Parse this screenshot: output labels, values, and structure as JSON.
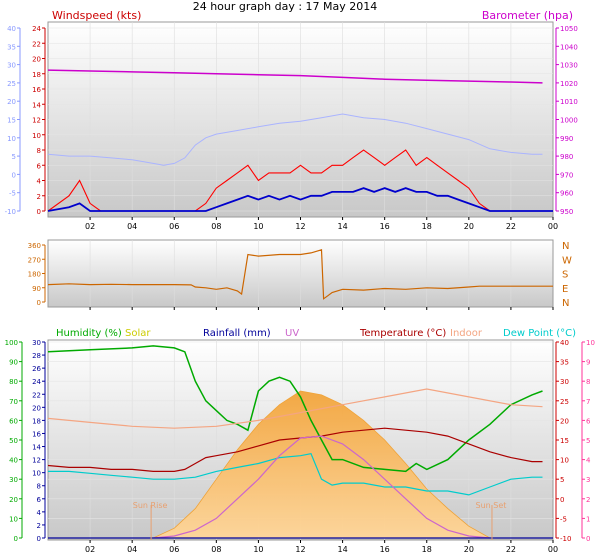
{
  "page_title": "24 hour graph day : 17 May 2014",
  "x_tick_labels": [
    "02",
    "04",
    "06",
    "08",
    "10",
    "12",
    "14",
    "16",
    "18",
    "20",
    "22",
    "00"
  ],
  "colors": {
    "wind": "#dd0000",
    "gust": "#ff0000",
    "avg_wind": "#0000cc",
    "barometer": "#cc00cc",
    "wind_direction": "#cc6600",
    "humidity": "#00aa00",
    "solar": "#ffb347",
    "rainfall": "#000099",
    "uv": "#cc66cc",
    "temperature": "#aa0000",
    "indoor": "#f4a582",
    "dew_point": "#00cccc",
    "sun_marker": "#e8a070",
    "panel_bg_top": "#ffffff",
    "panel_bg_bottom": "#c8c8c8"
  },
  "chart_data": [
    {
      "type": "line",
      "title": "24 hour graph day : 17 May 2014",
      "x_unit": "hour",
      "xlim": [
        0,
        24
      ],
      "left_axis": {
        "label": "Windspeed (kts)",
        "ticks": [
          0,
          2,
          4,
          6,
          8,
          10,
          12,
          14,
          16,
          18,
          20,
          22,
          24
        ],
        "ylim": [
          0,
          24
        ]
      },
      "left_outer_axis": {
        "ticks": [
          -10,
          -5,
          0,
          5,
          10,
          15,
          20,
          25,
          30,
          35,
          40
        ],
        "ylim": [
          -10,
          40
        ]
      },
      "right_axis": {
        "label": "Barometer (hpa)",
        "ticks": [
          950,
          960,
          970,
          980,
          990,
          1000,
          1010,
          1020,
          1030,
          1040,
          1050
        ],
        "ylim": [
          950,
          1050
        ]
      },
      "series": [
        {
          "name": "Barometer (hpa)",
          "axis": "right",
          "x": [
            0,
            2,
            4,
            6,
            8,
            10,
            12,
            14,
            16,
            18,
            20,
            22,
            23.5
          ],
          "y": [
            1027,
            1026.5,
            1026,
            1025.5,
            1025,
            1024.5,
            1024,
            1023,
            1022,
            1021.5,
            1021,
            1020.5,
            1020
          ]
        },
        {
          "axis": "left_outer",
          "x": [
            0,
            1,
            2,
            3,
            4,
            5,
            5.5,
            6,
            6.5,
            7,
            7.5,
            8,
            9,
            10,
            11,
            12,
            13,
            14,
            15,
            16,
            17,
            18,
            19,
            20,
            21,
            22,
            23,
            23.5
          ],
          "y": [
            5.5,
            5,
            5,
            4.5,
            4,
            3,
            2.5,
            3,
            4.5,
            8,
            10,
            11,
            12,
            13,
            14,
            14.5,
            15.5,
            16.5,
            15.5,
            15,
            14,
            12.5,
            11,
            9.5,
            7,
            6,
            5.5,
            5.5
          ]
        },
        {
          "name": "Wind (kts)",
          "axis": "left",
          "x": [
            0,
            1,
            1.5,
            2,
            2.5,
            3,
            4,
            5,
            6,
            6.5,
            7,
            7.5,
            8,
            8.5,
            9,
            9.5,
            10,
            10.5,
            11,
            11.5,
            12,
            12.5,
            13,
            13.5,
            14,
            14.5,
            15,
            15.5,
            16,
            16.5,
            17,
            17.5,
            18,
            18.5,
            19,
            19.5,
            20,
            20.5,
            21,
            21.5,
            22,
            23,
            24
          ],
          "y": [
            0,
            2,
            4,
            1,
            0,
            0,
            0,
            0,
            0,
            0,
            0,
            1,
            3,
            4,
            5,
            6,
            4,
            5,
            5,
            5,
            6,
            5,
            5,
            6,
            6,
            7,
            8,
            7,
            6,
            7,
            8,
            6,
            7,
            6,
            5,
            4,
            3,
            1,
            0,
            0,
            0,
            0,
            0
          ]
        },
        {
          "name": "Avg wind (kts)",
          "axis": "left",
          "x": [
            0,
            1,
            1.5,
            2,
            2.5,
            3,
            6,
            7,
            7.5,
            8,
            8.5,
            9,
            9.5,
            10,
            10.5,
            11,
            11.5,
            12,
            12.5,
            13,
            13.5,
            14,
            14.5,
            15,
            15.5,
            16,
            16.5,
            17,
            17.5,
            18,
            18.5,
            19,
            19.5,
            20,
            20.5,
            21,
            24
          ],
          "y": [
            0,
            0.5,
            1,
            0,
            0,
            0,
            0,
            0,
            0,
            0.5,
            1,
            1.5,
            2,
            1.5,
            2,
            1.5,
            2,
            1.5,
            2,
            2,
            2.5,
            2.5,
            2.5,
            3,
            2.5,
            3,
            2.5,
            3,
            2.5,
            2.5,
            2,
            2,
            1.5,
            1,
            0.5,
            0,
            0
          ]
        }
      ]
    },
    {
      "type": "line",
      "x_unit": "hour",
      "xlim": [
        0,
        24
      ],
      "left_axis": {
        "ticks": [
          0,
          90,
          180,
          270,
          360
        ],
        "ylim": [
          0,
          360
        ]
      },
      "right_axis": {
        "compass_labels": [
          "N",
          "W",
          "S",
          "E",
          "N"
        ]
      },
      "series": [
        {
          "axis": "left",
          "x": [
            0,
            1,
            2,
            3,
            4,
            5,
            6,
            6.8,
            7,
            7.5,
            8,
            8.5,
            9,
            9.2,
            9.5,
            10,
            11,
            12,
            12.5,
            13,
            13.1,
            13.3,
            13.5,
            14,
            15,
            16,
            17,
            18,
            19,
            20,
            20.5,
            21,
            22,
            23,
            24
          ],
          "y": [
            110,
            115,
            110,
            112,
            110,
            110,
            110,
            108,
            95,
            90,
            80,
            90,
            70,
            50,
            300,
            290,
            300,
            300,
            310,
            330,
            20,
            40,
            60,
            80,
            75,
            85,
            80,
            90,
            85,
            95,
            100,
            100,
            100,
            100,
            100
          ]
        }
      ]
    },
    {
      "type": "line",
      "x_unit": "hour",
      "xlim": [
        0,
        24
      ],
      "legend": [
        "Humidity (%)",
        "Solar",
        "Rainfall (mm)",
        "UV",
        "Temperature (°C)",
        "Indoor",
        "Dew Point (°C)"
      ],
      "annotations": [
        "Sun Rise",
        "Sun Set"
      ],
      "axes": {
        "humidity": {
          "ticks": [
            0,
            10,
            20,
            30,
            40,
            50,
            60,
            70,
            80,
            90,
            100
          ],
          "ylim": [
            0,
            100
          ]
        },
        "rainfall": {
          "ticks": [
            0,
            2,
            4,
            6,
            8,
            10,
            12,
            14,
            16,
            18,
            20,
            22,
            24,
            26,
            28,
            30
          ],
          "ylim": [
            0,
            30
          ]
        },
        "temperature": {
          "ticks": [
            -10,
            -5,
            0,
            5,
            10,
            15,
            20,
            25,
            30,
            35,
            40
          ],
          "ylim": [
            -10,
            40
          ]
        },
        "uv": {
          "ticks": [
            0,
            1,
            2,
            3,
            4,
            5,
            6,
            7,
            8,
            9,
            10
          ],
          "ylim": [
            0,
            10
          ]
        }
      },
      "sun_rise_hour": 4.9,
      "sun_set_hour": 21.1,
      "series": [
        {
          "name": "Humidity (%)",
          "axis": "humidity",
          "x": [
            0,
            2,
            4,
            5,
            6,
            6.5,
            7,
            7.5,
            8,
            8.5,
            9,
            9.5,
            10,
            10.5,
            11,
            11.5,
            12,
            12.5,
            13,
            13.5,
            14,
            15,
            16,
            17,
            17.5,
            18,
            19,
            20,
            21,
            22,
            23,
            23.5
          ],
          "y": [
            95,
            96,
            97,
            98,
            97,
            95,
            80,
            70,
            65,
            60,
            58,
            55,
            75,
            80,
            82,
            80,
            72,
            60,
            50,
            40,
            40,
            36,
            35,
            34,
            38,
            35,
            40,
            50,
            58,
            68,
            73,
            75
          ]
        },
        {
          "name": "Temperature (°C)",
          "axis": "temperature",
          "x": [
            0,
            1,
            2,
            3,
            4,
            5,
            6,
            6.5,
            7,
            7.5,
            8,
            9,
            10,
            11,
            12,
            13,
            14,
            15,
            16,
            17,
            18,
            19,
            20,
            21,
            22,
            23,
            23.5
          ],
          "y": [
            8.5,
            8,
            8,
            7.5,
            7.5,
            7,
            7,
            7.5,
            9,
            10.5,
            11,
            12,
            13.5,
            15,
            15.5,
            16,
            17,
            17.5,
            18,
            17.5,
            17,
            16,
            14,
            12,
            10.5,
            9.5,
            9.5
          ]
        },
        {
          "name": "Indoor",
          "axis": "temperature",
          "x": [
            0,
            2,
            4,
            6,
            8,
            10,
            12,
            14,
            16,
            18,
            20,
            22,
            23.5
          ],
          "y": [
            20.5,
            19.5,
            18.5,
            18,
            18.5,
            20,
            22,
            24,
            26,
            28,
            26,
            24,
            23.5
          ]
        },
        {
          "name": "Dew Point (°C)",
          "axis": "temperature",
          "x": [
            0,
            1,
            2,
            3,
            4,
            5,
            6,
            7,
            8,
            9,
            10,
            11,
            12,
            12.5,
            13,
            13.5,
            14,
            15,
            16,
            17,
            18,
            19,
            20,
            21,
            22,
            23,
            23.5
          ],
          "y": [
            7,
            7,
            6.5,
            6,
            5.5,
            5,
            5,
            5.5,
            7,
            8,
            9,
            10.5,
            11,
            11.5,
            5,
            3.5,
            4,
            4,
            3,
            3,
            2,
            2,
            1,
            3,
            5,
            5.5,
            5.5
          ]
        },
        {
          "name": "Solar",
          "axis": "uv",
          "x": [
            5,
            6,
            7,
            8,
            9,
            10,
            11,
            12,
            13,
            14,
            15,
            16,
            17,
            18,
            19,
            20,
            21
          ],
          "y": [
            0,
            0.5,
            1.5,
            3,
            4.5,
            5.8,
            6.8,
            7.5,
            7.3,
            6.8,
            6,
            5,
            3.8,
            2.5,
            1.5,
            0.6,
            0
          ]
        },
        {
          "name": "UV",
          "axis": "uv",
          "x": [
            5,
            6,
            7,
            8,
            9,
            10,
            11,
            12,
            13,
            14,
            15,
            16,
            17,
            18,
            19,
            20,
            21
          ],
          "y": [
            0,
            0.1,
            0.4,
            1,
            2,
            3,
            4.2,
            5.1,
            5.2,
            4.8,
            4,
            3,
            2,
            1,
            0.4,
            0.1,
            0
          ]
        },
        {
          "name": "Rainfall (mm)",
          "axis": "rainfall",
          "x": [
            0,
            24
          ],
          "y": [
            0,
            0
          ]
        }
      ]
    }
  ]
}
